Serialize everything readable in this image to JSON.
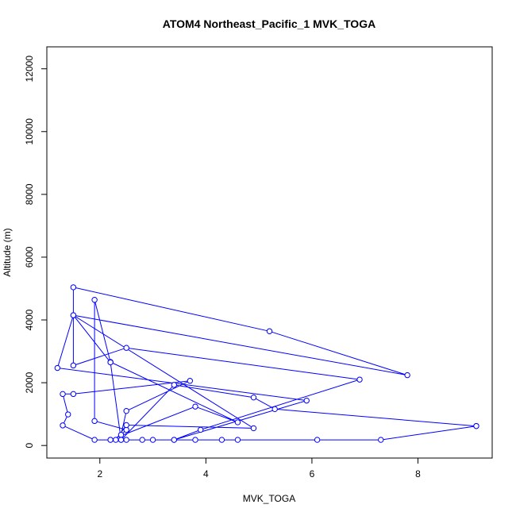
{
  "chart_data": {
    "type": "line",
    "title": "ATOM4 Northeast_Pacific_1 MVK_TOGA",
    "xlabel": "MVK_TOGA",
    "ylabel": "Altitude (m)",
    "xlim": [
      1.0,
      9.4
    ],
    "ylim": [
      -400,
      12700
    ],
    "x_ticks": [
      2,
      4,
      6,
      8
    ],
    "x_tick_labels": [
      "2",
      "4",
      "6",
      "8"
    ],
    "y_ticks": [
      0,
      2000,
      4000,
      6000,
      8000,
      10000,
      12000
    ],
    "y_tick_labels": [
      "0",
      "2000",
      "4000",
      "6000",
      "8000",
      "10000",
      "12000"
    ],
    "grid": false,
    "marker": "open-circle",
    "series": [
      {
        "color": "#0000ff",
        "x": [
          9.1,
          7.3,
          6.1,
          4.6,
          4.3,
          3.8,
          3.4,
          3.0,
          2.8,
          2.5,
          2.4,
          2.2,
          1.9,
          1.3,
          1.4,
          1.3,
          1.5,
          3.7,
          2.5,
          2.4,
          2.5,
          1.9,
          1.9,
          2.2,
          4.6,
          3.8,
          2.2,
          2.3,
          2.5,
          4.9,
          1.5,
          1.2,
          5.9,
          3.4,
          3.9,
          6.9,
          2.5,
          1.5,
          1.5,
          5.2,
          7.8,
          1.5,
          2.2,
          2.4,
          3.4,
          4.9,
          5.3,
          9.1
        ],
        "y": [
          620,
          180,
          180,
          180,
          180,
          180,
          180,
          180,
          180,
          180,
          180,
          180,
          180,
          640,
          990,
          1640,
          1640,
          2060,
          1100,
          340,
          500,
          780,
          4640,
          2660,
          740,
          1240,
          180,
          180,
          650,
          550,
          4150,
          2470,
          1430,
          180,
          500,
          2100,
          3110,
          2550,
          5040,
          3640,
          2240,
          4150,
          2650,
          180,
          1930,
          1530,
          1160,
          620
        ]
      }
    ]
  }
}
